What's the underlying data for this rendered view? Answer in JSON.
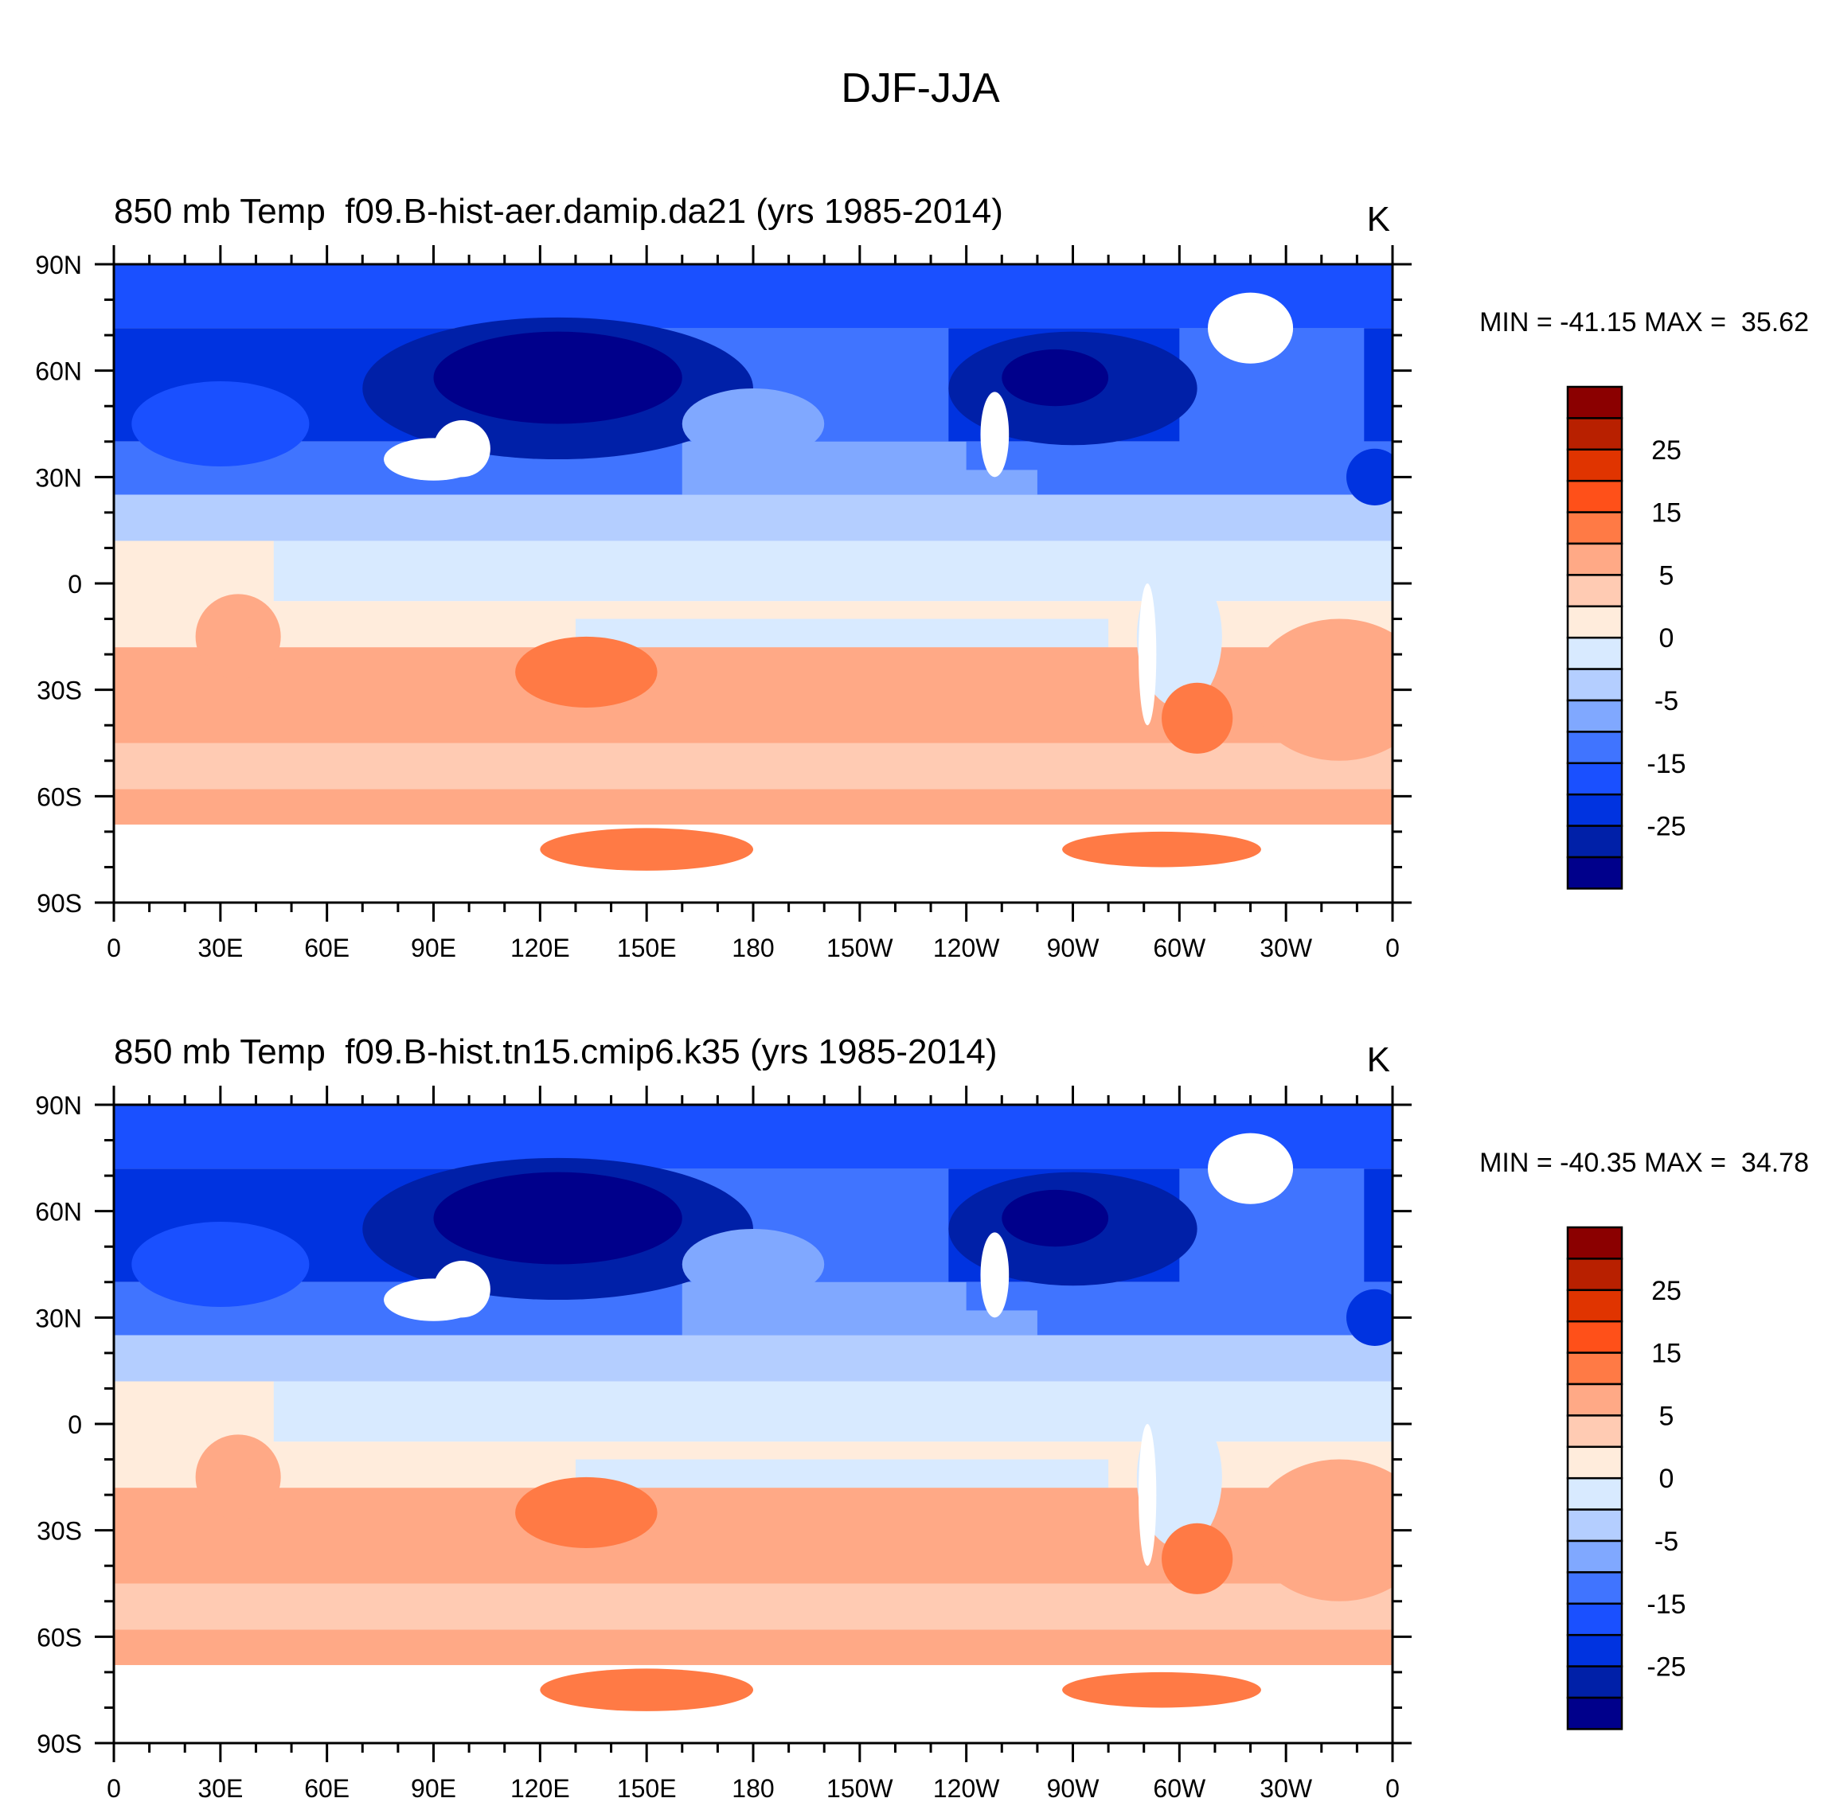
{
  "figure_title": "DJF-JJA",
  "chart_data": [
    {
      "type": "heatmap",
      "title": "850 mb Temp  f09.B-hist-aer.damip.da21 (yrs 1985-2014)",
      "units": "K",
      "stats": "MIN = -41.15 MAX =  35.62",
      "min": -41.15,
      "max": 35.62,
      "x_tick_labels": [
        "0",
        "30E",
        "60E",
        "90E",
        "120E",
        "150E",
        "180",
        "150W",
        "120W",
        "90W",
        "60W",
        "30W",
        "0"
      ],
      "y_tick_labels": [
        "90N",
        "60N",
        "30N",
        "0",
        "30S",
        "60S",
        "90S"
      ],
      "xlim": [
        0,
        360
      ],
      "ylim": [
        -90,
        90
      ]
    },
    {
      "type": "heatmap",
      "title": "850 mb Temp  f09.B-hist.tn15.cmip6.k35 (yrs 1985-2014)",
      "units": "K",
      "stats": "MIN = -40.35 MAX =  34.78",
      "min": -40.35,
      "max": 34.78,
      "x_tick_labels": [
        "0",
        "30E",
        "60E",
        "90E",
        "120E",
        "150E",
        "180",
        "150W",
        "120W",
        "90W",
        "60W",
        "30W",
        "0"
      ],
      "y_tick_labels": [
        "90N",
        "60N",
        "30N",
        "0",
        "30S",
        "60S",
        "90S"
      ],
      "xlim": [
        0,
        360
      ],
      "ylim": [
        -90,
        90
      ]
    }
  ],
  "colorbar": {
    "labels": [
      "25",
      "15",
      "5",
      "0",
      "-5",
      "-15",
      "-25"
    ],
    "colors_top_to_bottom": [
      "#8b0000",
      "#b82000",
      "#e03400",
      "#ff5019",
      "#ff7a45",
      "#ffa986",
      "#ffcbb3",
      "#ffecdc",
      "#d8eaff",
      "#b4ceff",
      "#80a8ff",
      "#4074ff",
      "#1a50ff",
      "#0033e0",
      "#0020a8",
      "#00008b"
    ]
  }
}
